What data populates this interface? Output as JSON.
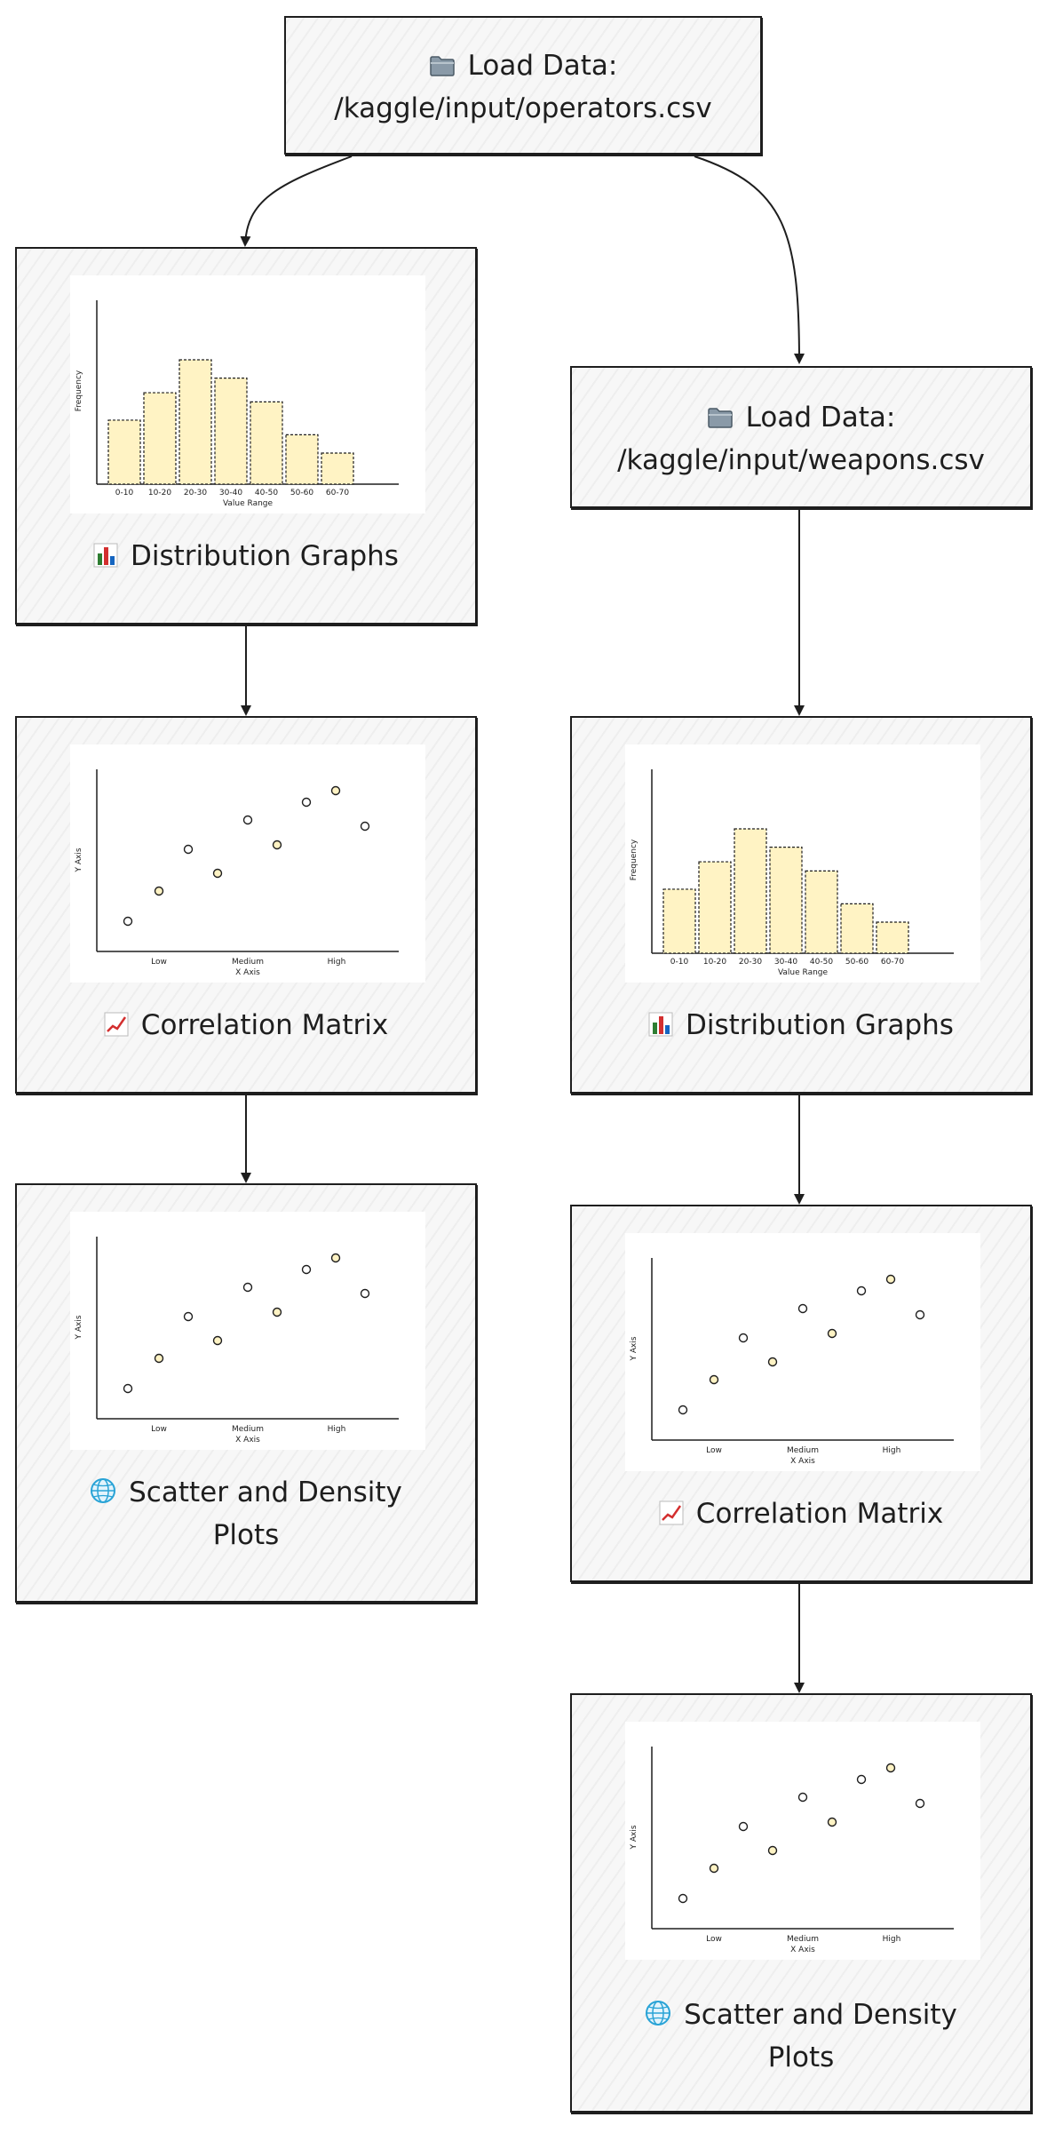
{
  "nodes": {
    "load_operators": {
      "label": "Load Data:",
      "path": "/kaggle/input/operators.csv",
      "icon": "folder-icon"
    },
    "load_weapons": {
      "label": "Load Data:",
      "path": "/kaggle/input/weapons.csv",
      "icon": "folder-icon"
    },
    "dist_operators": {
      "label": "Distribution Graphs",
      "icon": "bar-chart-icon"
    },
    "corr_operators": {
      "label": "Correlation Matrix",
      "icon": "line-chart-icon"
    },
    "scatter_operators": {
      "line1": "Scatter and Density",
      "line2": "Plots",
      "icon": "globe-icon"
    },
    "dist_weapons": {
      "label": "Distribution Graphs",
      "icon": "bar-chart-icon"
    },
    "corr_weapons": {
      "label": "Correlation Matrix",
      "icon": "line-chart-icon"
    },
    "scatter_weapons": {
      "line1": "Scatter and Density",
      "line2": "Plots",
      "icon": "globe-icon"
    }
  },
  "thumbnails": {
    "histogram": {
      "ylabel": "Frequency",
      "xlabel": "Value Range",
      "bins": [
        "0-10",
        "10-20",
        "20-30",
        "30-40",
        "40-50",
        "50-60",
        "60-70"
      ],
      "values": [
        35,
        50,
        68,
        58,
        45,
        27,
        17
      ]
    },
    "scatter": {
      "ylabel": "Y Axis",
      "xlabel": "X Axis",
      "ticks": [
        "Low",
        "Medium",
        "High"
      ]
    }
  },
  "colors": {
    "border": "#1e1e1e",
    "node_fill": "#f7f7f7",
    "bar_fill": "#fff3c4",
    "point_fill": "#fff3c4"
  }
}
